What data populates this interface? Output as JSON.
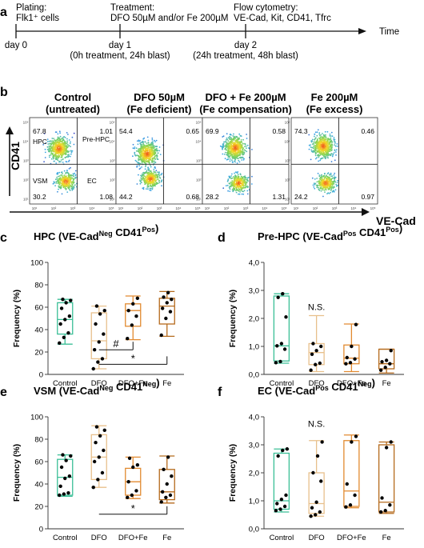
{
  "panel_a": {
    "letter": "a",
    "plating": [
      "Plating:",
      "Flk1⁺ cells"
    ],
    "treatment": [
      "Treatment:",
      "DFO 50µM and/or Fe 200µM"
    ],
    "flow": [
      "Flow cytometry:",
      "VE-Cad, Kit, CD41, Tfrc"
    ],
    "time": "Time",
    "day0": "day 0",
    "day1": "day 1",
    "day1_sub": "(0h treatment, 24h blast)",
    "day2": "day 2",
    "day2_sub": "(24h treatment, 48h blast)"
  },
  "panel_b": {
    "letter": "b",
    "y_axis": "CD41",
    "x_axis": "VE-Cad",
    "tick_labels": [
      "10¹",
      "10²",
      "10³",
      "10⁴",
      "10⁵"
    ],
    "quadrant_names": [
      "HPC",
      "Pre-HPC",
      "VSM",
      "EC"
    ],
    "plots": [
      {
        "title": [
          "Control",
          "(untreated)"
        ],
        "q": [
          "67.8",
          "1.01",
          "30.2",
          "1.08"
        ],
        "hpc": [
          0.34,
          0.36
        ],
        "vsm": [
          0.42,
          0.74
        ]
      },
      {
        "title": [
          "DFO 50µM",
          "(Fe deficient)"
        ],
        "q": [
          "54.4",
          "0.65",
          "44.2",
          "0.68"
        ],
        "hpc": [
          0.36,
          0.42
        ],
        "vsm": [
          0.4,
          0.71
        ]
      },
      {
        "title": [
          "DFO + Fe 200µM",
          "(Fe compensation)"
        ],
        "q": [
          "69.9",
          "0.58",
          "28.2",
          "1.31"
        ],
        "hpc": [
          0.38,
          0.35
        ],
        "vsm": [
          0.42,
          0.76
        ]
      },
      {
        "title": [
          "Fe 200µM",
          "(Fe excess)"
        ],
        "q": [
          "74.3",
          "0.46",
          "24.2",
          "0.97"
        ],
        "hpc": [
          0.37,
          0.33
        ],
        "vsm": [
          0.4,
          0.76
        ]
      }
    ]
  },
  "colors": {
    "control": "#3bbf97",
    "dfo": "#e8c08c",
    "dfofe": "#e28a30",
    "fe": "#b56a1c"
  },
  "chart_data": [
    {
      "type": "box",
      "letter": "c",
      "title": "HPC (VE-Cad^Neg CD41^Pos)",
      "title_main": "HPC (VE-Cad",
      "title_sup1": "Neg",
      "title_mid": " CD41",
      "title_sup2": "Pos",
      "title_end": ")",
      "ylabel": "Frequency (%)",
      "ylim": [
        0,
        100
      ],
      "yticks": [
        "0",
        "20",
        "40",
        "60",
        "80",
        "100"
      ],
      "categories": [
        "Control",
        "DFO",
        "DFO+Fe",
        "Fe"
      ],
      "series": [
        {
          "min": 27,
          "q1": 36,
          "median": 49,
          "q3": 64,
          "max": 67,
          "points": [
            28,
            33,
            37,
            45,
            49,
            52,
            59,
            64,
            66,
            67
          ]
        },
        {
          "min": 5,
          "q1": 14,
          "median": 30,
          "q3": 55,
          "max": 61,
          "points": [
            5,
            11,
            14,
            22,
            29,
            36,
            45,
            54,
            57,
            61
          ]
        },
        {
          "min": 31,
          "q1": 43,
          "median": 57,
          "q3": 63,
          "max": 70,
          "points": [
            32,
            44,
            52,
            57,
            63,
            68
          ]
        },
        {
          "min": 34,
          "q1": 45,
          "median": 61,
          "q3": 68,
          "max": 74,
          "points": [
            35,
            50,
            56,
            59,
            64,
            67,
            69,
            73
          ]
        }
      ],
      "annotations": [
        {
          "text": "#",
          "from": 1,
          "to": 2,
          "y": 22
        },
        {
          "text": "*",
          "from": 1,
          "to": 3,
          "y": 9
        }
      ]
    },
    {
      "type": "box",
      "letter": "d",
      "title": "Pre-HPC (VE-Cad^Pos CD41^Pos)",
      "title_main": "Pre-HPC (VE-Cad",
      "title_sup1": "Pos",
      "title_mid": " CD41",
      "title_sup2": "Pos",
      "title_end": ")",
      "ylabel": "Frequency (%)",
      "ylim": [
        0,
        4
      ],
      "yticks": [
        "0,0",
        "1,0",
        "2,0",
        "3,0",
        "4,0"
      ],
      "categories": [
        "Control",
        "DFO",
        "DFO+Fe",
        "Fe"
      ],
      "series": [
        {
          "min": 0.4,
          "q1": 0.48,
          "median": 1.02,
          "q3": 2.8,
          "max": 2.88,
          "points": [
            0.42,
            0.46,
            0.9,
            1.02,
            1.1,
            2.05,
            2.75,
            2.88
          ]
        },
        {
          "min": 0.1,
          "q1": 0.35,
          "median": 0.78,
          "q3": 1.1,
          "max": 2.1,
          "points": [
            0.15,
            0.35,
            0.4,
            0.72,
            0.85,
            1.0,
            1.1
          ]
        },
        {
          "min": 0.1,
          "q1": 0.38,
          "median": 0.58,
          "q3": 1.05,
          "max": 1.8,
          "points": [
            0.38,
            0.42,
            0.55,
            0.6,
            1.0,
            1.78
          ]
        },
        {
          "min": 0.05,
          "q1": 0.2,
          "median": 0.38,
          "q3": 0.9,
          "max": 0.9,
          "points": [
            0.15,
            0.25,
            0.38,
            0.45,
            0.5,
            0.85
          ]
        }
      ],
      "annotations": [
        {
          "text": "N.S.",
          "from": 1,
          "to": 1,
          "y": 2.3
        }
      ]
    },
    {
      "type": "box",
      "letter": "e",
      "title": "VSM (VE-Cad^Neg CD41^Neg)",
      "title_main": "VSM (VE-Cad",
      "title_sup1": "Neg",
      "title_mid": " CD41",
      "title_sup2": "Neg",
      "title_end": ")",
      "ylabel": "Frequency (%)",
      "ylim": [
        0,
        100
      ],
      "yticks": [
        "0",
        "20",
        "40",
        "60",
        "80",
        "100"
      ],
      "categories": [
        "Control",
        "DFO",
        "DFO+Fe",
        "Fe"
      ],
      "series": [
        {
          "min": 29,
          "q1": 30,
          "median": 46,
          "q3": 62,
          "max": 66,
          "points": [
            30,
            31,
            32,
            38,
            45,
            47,
            55,
            61,
            65,
            66
          ]
        },
        {
          "min": 37,
          "q1": 44,
          "median": 64,
          "q3": 84,
          "max": 92,
          "points": [
            37,
            44,
            50,
            60,
            64,
            70,
            77,
            83,
            88,
            91
          ]
        },
        {
          "min": 27,
          "q1": 30,
          "median": 42,
          "q3": 54,
          "max": 64,
          "points": [
            28,
            30,
            34,
            42,
            55,
            57,
            63
          ]
        },
        {
          "min": 23,
          "q1": 26,
          "median": 33,
          "q3": 53,
          "max": 65,
          "points": [
            24,
            28,
            30,
            33,
            40,
            47,
            53,
            64
          ]
        }
      ],
      "annotations": [
        {
          "text": "*",
          "from": 1,
          "to": 3,
          "y": 13
        }
      ]
    },
    {
      "type": "box",
      "letter": "f",
      "title": "EC (VE-Cad^Pos CD41^Neg)",
      "title_main": "EC (VE-Cad",
      "title_sup1": "Pos",
      "title_mid": " CD41",
      "title_sup2": "Neg",
      "title_end": ")",
      "ylabel": "Frequency (%)",
      "ylim": [
        0,
        4
      ],
      "yticks": [
        "0,0",
        "1,0",
        "2,0",
        "3,0",
        "4,0"
      ],
      "categories": [
        "Control",
        "DFO",
        "DFO+Fe",
        "Fe"
      ],
      "series": [
        {
          "min": 0.6,
          "q1": 0.7,
          "median": 1.0,
          "q3": 2.7,
          "max": 2.85,
          "points": [
            0.65,
            0.7,
            0.8,
            0.9,
            1.05,
            1.2,
            2.6,
            2.8,
            2.85
          ]
        },
        {
          "min": 0.45,
          "q1": 0.55,
          "median": 0.9,
          "q3": 2.0,
          "max": 3.15,
          "points": [
            0.45,
            0.5,
            0.6,
            0.75,
            0.95,
            1.7,
            2.0,
            2.6,
            3.1
          ]
        },
        {
          "min": 0.75,
          "q1": 0.8,
          "median": 1.35,
          "q3": 3.15,
          "max": 3.35,
          "points": [
            0.78,
            0.85,
            1.2,
            1.6,
            3.1,
            3.3
          ]
        },
        {
          "min": 0.55,
          "q1": 0.6,
          "median": 0.95,
          "q3": 3.0,
          "max": 3.1,
          "points": [
            0.6,
            0.65,
            0.85,
            1.1,
            2.9,
            3.1
          ]
        }
      ],
      "annotations": [
        {
          "text": "N.S.",
          "from": 1,
          "to": 1,
          "y": 3.65
        }
      ]
    }
  ]
}
